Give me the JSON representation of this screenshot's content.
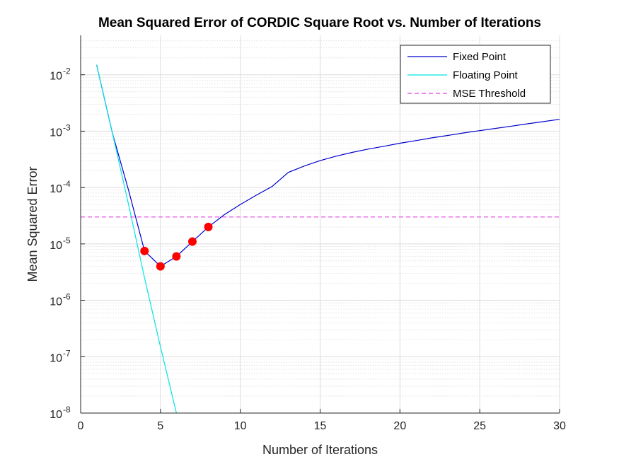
{
  "chart_data": {
    "type": "line",
    "title": "Mean Squared Error of CORDIC Square Root vs. Number of Iterations",
    "xlabel": "Number of Iterations",
    "ylabel": "Mean Squared Error",
    "xlim": [
      0,
      30
    ],
    "ylim": [
      1e-08,
      0.05
    ],
    "yscale": "log",
    "grid": true,
    "legend_position": "top-right",
    "x_ticks": [
      "0",
      "5",
      "10",
      "15",
      "20",
      "25",
      "30"
    ],
    "y_ticks": [
      {
        "base": "10",
        "exp": "-8"
      },
      {
        "base": "10",
        "exp": "-7"
      },
      {
        "base": "10",
        "exp": "-6"
      },
      {
        "base": "10",
        "exp": "-5"
      },
      {
        "base": "10",
        "exp": "-4"
      },
      {
        "base": "10",
        "exp": "-3"
      },
      {
        "base": "10",
        "exp": "-2"
      }
    ],
    "series": [
      {
        "name": "Fixed Point",
        "color": "#0000cc",
        "style": "solid",
        "x": [
          1,
          2,
          3,
          4,
          5,
          6,
          7,
          8,
          9,
          10,
          11,
          12,
          13,
          14,
          15,
          16,
          17,
          18,
          19,
          20,
          21,
          22,
          23,
          24,
          25,
          26,
          27,
          28,
          29,
          30
        ],
        "y": [
          0.015,
          0.0009,
          9e-05,
          7.5e-06,
          4e-06,
          6e-06,
          1.1e-05,
          2e-05,
          3.3e-05,
          5e-05,
          7.3e-05,
          0.000105,
          0.000185,
          0.00024,
          0.0003,
          0.00036,
          0.00042,
          0.00048,
          0.00054,
          0.00061,
          0.00068,
          0.00076,
          0.00084,
          0.00093,
          0.00102,
          0.00112,
          0.00123,
          0.00135,
          0.00148,
          0.00162
        ]
      },
      {
        "name": "Floating Point",
        "color": "#00e5e5",
        "style": "solid",
        "x": [
          1,
          2,
          3,
          4,
          5,
          6
        ],
        "y": [
          0.015,
          0.0009,
          5e-05,
          2.5e-06,
          1.5e-07,
          1e-08
        ]
      },
      {
        "name": "MSE Threshold",
        "color": "#e040e0",
        "style": "dashed",
        "x": [
          0,
          30
        ],
        "y": [
          3e-05,
          3e-05
        ]
      }
    ],
    "highlighted_points": {
      "color": "#ff0000",
      "x": [
        4,
        5,
        6,
        7,
        8
      ],
      "y": [
        7.5e-06,
        4e-06,
        6e-06,
        1.1e-05,
        2e-05
      ]
    }
  }
}
